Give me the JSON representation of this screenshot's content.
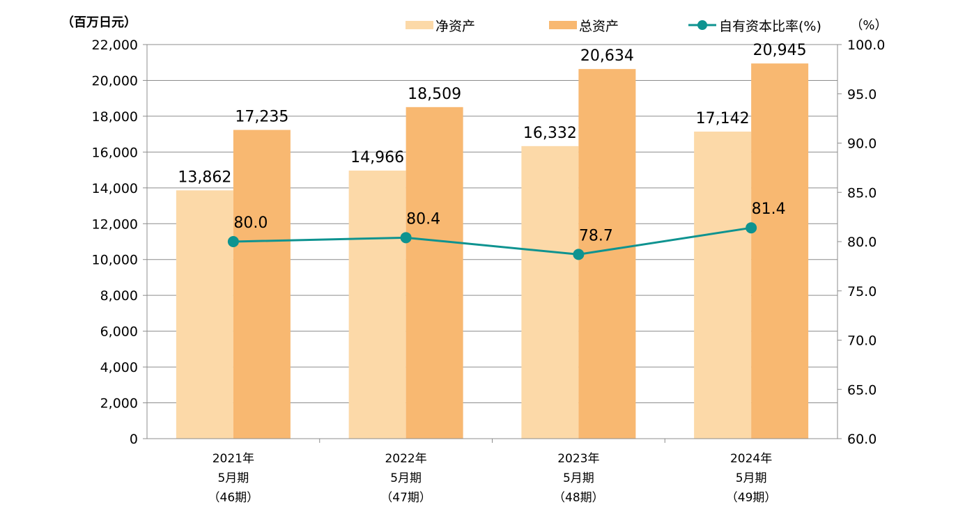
{
  "chart_data": {
    "type": "bar",
    "categories": [
      [
        "2021年",
        "5月期",
        "（46期）"
      ],
      [
        "2022年",
        "5月期",
        "（47期）"
      ],
      [
        "2023年",
        "5月期",
        "（48期）"
      ],
      [
        "2024年",
        "5月期",
        "（49期）"
      ]
    ],
    "series": [
      {
        "name": "净资产",
        "type": "bar",
        "axis": "left",
        "color": "#FCD9A8",
        "values": [
          13862,
          14966,
          16332,
          17142
        ],
        "labels": [
          "13,862",
          "14,966",
          "16,332",
          "17,142"
        ]
      },
      {
        "name": "总资产",
        "type": "bar",
        "axis": "left",
        "color": "#F8B871",
        "values": [
          17235,
          18509,
          20634,
          20945
        ],
        "labels": [
          "17,235",
          "18,509",
          "20,634",
          "20,945"
        ]
      },
      {
        "name": "自有资本比率(%)",
        "type": "line",
        "axis": "right",
        "color": "#0E9390",
        "values": [
          80.0,
          80.4,
          78.7,
          81.4
        ],
        "labels": [
          "80.0",
          "80.4",
          "78.7",
          "81.4"
        ]
      }
    ],
    "y_left": {
      "unit": "（百万日元）",
      "range": [
        0,
        22000
      ],
      "ticks": [
        "0",
        "2,000",
        "4,000",
        "6,000",
        "8,000",
        "10,000",
        "12,000",
        "14,000",
        "16,000",
        "18,000",
        "20,000",
        "22,000"
      ]
    },
    "y_right": {
      "unit": "（%）",
      "range": [
        60,
        100
      ],
      "ticks": [
        "60.0",
        "65.0",
        "70.0",
        "75.0",
        "80.0",
        "85.0",
        "90.0",
        "95.0",
        "100.0"
      ]
    },
    "grid": true,
    "legend_position": "top"
  }
}
